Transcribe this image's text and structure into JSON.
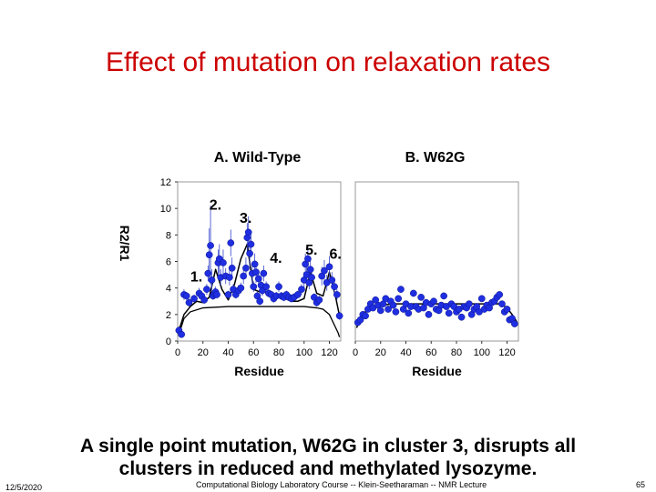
{
  "slide": {
    "title": "Effect of mutation on relaxation rates",
    "caption_line1": "A single point mutation, W62G in cluster 3, disrupts all",
    "caption_line2": "clusters in reduced and methylated lysozyme.",
    "date": "12/5/2020",
    "footer": "Computational Biology Laboratory Course -- Klein-Seetharaman -- NMR Lecture",
    "page": "65"
  },
  "chart_data": [
    {
      "type": "scatter",
      "title": "A. Wild-Type",
      "xlabel": "Residue",
      "ylabel": "R2/R1",
      "xlim": [
        0,
        129
      ],
      "ylim": [
        0,
        12
      ],
      "xticks": [
        0,
        20,
        40,
        60,
        80,
        100,
        120
      ],
      "yticks": [
        0,
        2,
        4,
        6,
        8,
        10,
        12
      ],
      "annotations": [
        {
          "text": "1.",
          "x": 10,
          "y": 4.5
        },
        {
          "text": "2.",
          "x": 25,
          "y": 9.9
        },
        {
          "text": "3.",
          "x": 49,
          "y": 8.9
        },
        {
          "text": "4.",
          "x": 73,
          "y": 5.9
        },
        {
          "text": "5.",
          "x": 101,
          "y": 6.5
        },
        {
          "text": "6.",
          "x": 120,
          "y": 6.2
        }
      ],
      "x": [
        1,
        3,
        5,
        7,
        9,
        13,
        17,
        19,
        21,
        23,
        24,
        25,
        26,
        27,
        28,
        29,
        30,
        31,
        32,
        33,
        34,
        36,
        38,
        40,
        41,
        42,
        43,
        44,
        46,
        48,
        50,
        52,
        54,
        55,
        56,
        57,
        58,
        59,
        60,
        61,
        62,
        63,
        64,
        65,
        66,
        67,
        68,
        70,
        72,
        74,
        76,
        78,
        80,
        82,
        84,
        86,
        88,
        90,
        92,
        95,
        98,
        100,
        101,
        102,
        103,
        104,
        105,
        106,
        108,
        110,
        112,
        114,
        116,
        118,
        120,
        122,
        124,
        126,
        128
      ],
      "y": [
        0.8,
        0.5,
        3.5,
        3.4,
        2.9,
        3.2,
        3.6,
        3.4,
        3.1,
        3.9,
        5.1,
        6.5,
        7.2,
        4.6,
        3.4,
        3.6,
        3.7,
        3.5,
        5.9,
        6.2,
        4.8,
        5.9,
        4.9,
        3.5,
        4.8,
        7.4,
        5.5,
        3.9,
        3.5,
        3.8,
        4.0,
        4.9,
        5.5,
        7.8,
        8.2,
        6.6,
        7.3,
        5.1,
        4.1,
        5.8,
        5.2,
        3.4,
        4.7,
        3.0,
        4.2,
        3.8,
        5.1,
        4.1,
        3.6,
        3.5,
        3.2,
        3.4,
        4.1,
        3.4,
        3.3,
        3.5,
        3.3,
        3.2,
        3.3,
        3.5,
        3.9,
        4.6,
        5.8,
        5.0,
        6.2,
        4.4,
        5.4,
        4.8,
        3.3,
        2.9,
        3.1,
        4.9,
        5.3,
        4.4,
        5.6,
        4.6,
        4.1,
        3.5,
        1.9
      ],
      "yerr": [
        0.3,
        0.2,
        0.4,
        0.3,
        0.3,
        0.3,
        0.4,
        0.3,
        0.3,
        0.4,
        0.6,
        2.0,
        3.0,
        0.8,
        0.3,
        0.4,
        0.4,
        0.3,
        1.0,
        1.1,
        0.6,
        1.0,
        0.6,
        0.3,
        0.6,
        1.0,
        0.8,
        0.4,
        0.3,
        0.4,
        0.4,
        0.6,
        0.8,
        1.1,
        1.2,
        1.0,
        1.0,
        0.8,
        0.4,
        0.8,
        0.8,
        0.3,
        0.6,
        0.3,
        0.4,
        0.4,
        0.6,
        0.4,
        0.3,
        0.3,
        0.3,
        0.3,
        0.4,
        0.3,
        0.3,
        0.3,
        0.3,
        0.3,
        0.3,
        0.3,
        0.4,
        0.6,
        0.8,
        0.6,
        0.9,
        0.5,
        0.7,
        0.6,
        0.3,
        0.3,
        0.3,
        0.7,
        0.8,
        0.6,
        0.8,
        0.6,
        0.5,
        0.4,
        0.3
      ],
      "fit_x": [
        1,
        5,
        10,
        15,
        20,
        25,
        30,
        35,
        40,
        45,
        50,
        55,
        60,
        65,
        70,
        75,
        80,
        85,
        90,
        95,
        100,
        105,
        110,
        115,
        120,
        125,
        128
      ],
      "fit_y": [
        0.8,
        2.0,
        2.6,
        3.0,
        2.9,
        3.3,
        5.4,
        3.9,
        3.1,
        4.3,
        6.2,
        7.3,
        3.9,
        3.7,
        3.7,
        3.6,
        3.4,
        3.2,
        3.0,
        3.0,
        3.2,
        5.2,
        3.6,
        3.4,
        5.2,
        3.3,
        1.9
      ],
      "baseline_x": [
        1,
        5,
        10,
        20,
        30,
        40,
        50,
        60,
        70,
        80,
        90,
        100,
        110,
        115,
        120,
        124,
        127,
        128
      ],
      "baseline_y": [
        0.5,
        1.7,
        2.2,
        2.5,
        2.55,
        2.6,
        2.6,
        2.6,
        2.6,
        2.6,
        2.6,
        2.6,
        2.5,
        2.4,
        2.0,
        1.2,
        0.6,
        0.3
      ]
    },
    {
      "type": "scatter",
      "title": "B. W62G",
      "xlabel": "Residue",
      "xlim": [
        0,
        129
      ],
      "ylim": [
        0,
        12
      ],
      "xticks": [
        0,
        20,
        40,
        60,
        80,
        100,
        120
      ],
      "x": [
        2,
        4,
        6,
        8,
        10,
        12,
        14,
        16,
        18,
        20,
        22,
        24,
        26,
        28,
        30,
        32,
        34,
        36,
        38,
        40,
        42,
        44,
        46,
        48,
        50,
        52,
        54,
        56,
        58,
        60,
        62,
        64,
        66,
        68,
        70,
        72,
        74,
        76,
        78,
        80,
        82,
        84,
        86,
        88,
        90,
        92,
        94,
        96,
        98,
        100,
        102,
        104,
        106,
        108,
        110,
        112,
        114,
        116,
        118,
        120,
        122,
        124,
        126
      ],
      "y": [
        1.4,
        1.6,
        2.0,
        1.9,
        2.4,
        2.8,
        2.5,
        3.1,
        2.7,
        2.3,
        2.8,
        3.2,
        2.4,
        3.0,
        2.7,
        2.2,
        3.2,
        3.9,
        2.4,
        2.8,
        2.1,
        2.6,
        3.6,
        2.6,
        2.4,
        3.3,
        2.5,
        2.9,
        2.0,
        2.8,
        3.0,
        2.4,
        2.3,
        2.7,
        3.4,
        2.6,
        2.1,
        2.8,
        2.6,
        2.2,
        2.4,
        1.8,
        2.6,
        2.5,
        2.8,
        2.0,
        2.4,
        2.6,
        2.2,
        3.2,
        2.4,
        2.7,
        2.5,
        2.9,
        3.0,
        3.3,
        3.5,
        2.8,
        2.2,
        2.4,
        1.6,
        1.7,
        1.3
      ],
      "fit_x": [
        1,
        5,
        10,
        20,
        30,
        40,
        50,
        60,
        70,
        80,
        90,
        100,
        110,
        115,
        120,
        124,
        128
      ],
      "fit_y": [
        1.0,
        1.9,
        2.4,
        2.7,
        2.8,
        2.8,
        2.8,
        2.8,
        2.8,
        2.8,
        2.8,
        2.8,
        2.8,
        2.8,
        2.5,
        2.0,
        1.4
      ]
    }
  ]
}
